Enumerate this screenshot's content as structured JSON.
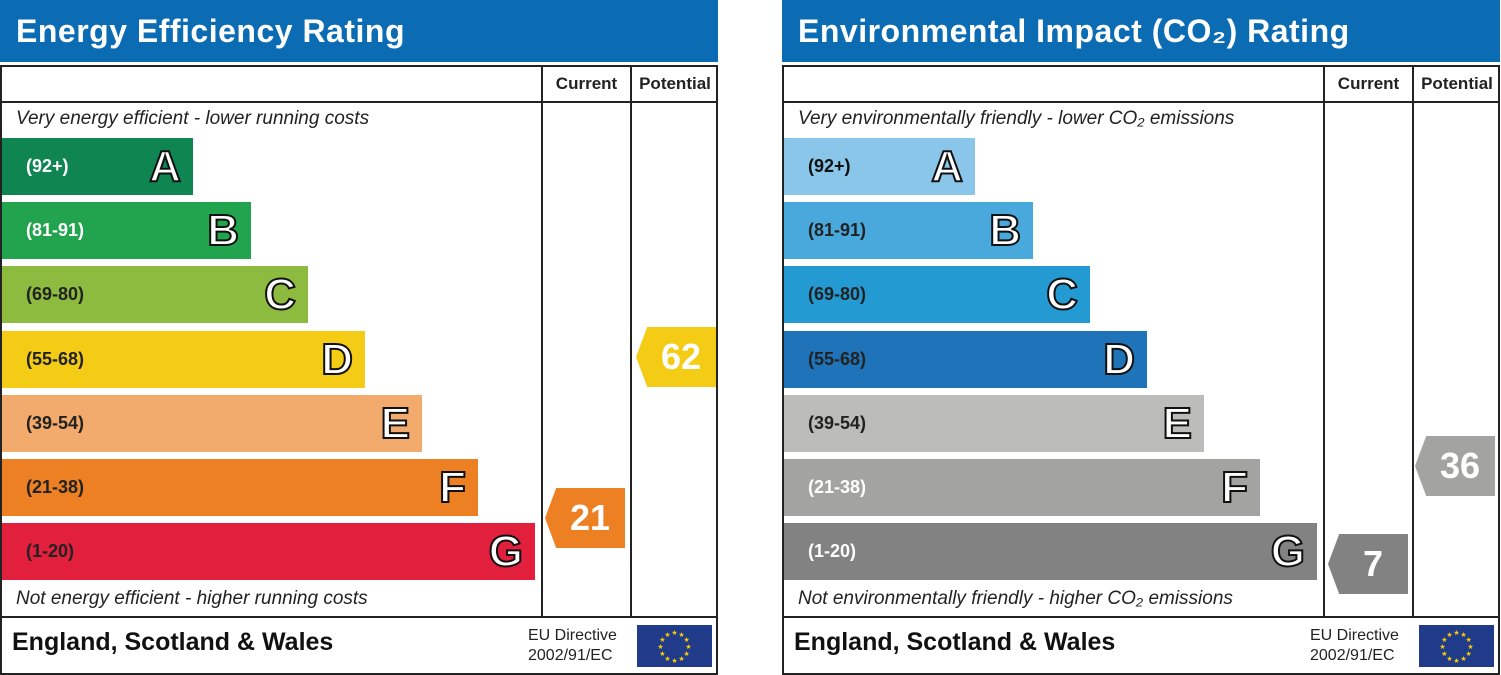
{
  "panels": [
    {
      "title": "Energy Efficiency Rating",
      "current_label": "Current",
      "potential_label": "Potential",
      "top_caption": "Very energy efficient - lower running costs",
      "bottom_caption": "Not energy efficient - higher running costs",
      "footer": "England, Scotland & Wales",
      "eu_line1": "EU Directive",
      "eu_line2": "2002/91/EC",
      "bands": [
        {
          "letter": "A",
          "range": "(92+)",
          "color": "#0f8552",
          "text": "#fff"
        },
        {
          "letter": "B",
          "range": "(81-91)",
          "color": "#22a34d",
          "text": "#fff"
        },
        {
          "letter": "C",
          "range": "(69-80)",
          "color": "#8cbb3f",
          "text": "#222"
        },
        {
          "letter": "D",
          "range": "(55-68)",
          "color": "#f5cc15",
          "text": "#222"
        },
        {
          "letter": "E",
          "range": "(39-54)",
          "color": "#f2aa6d",
          "text": "#222"
        },
        {
          "letter": "F",
          "range": "(21-38)",
          "color": "#ed8023",
          "text": "#222"
        },
        {
          "letter": "G",
          "range": "(1-20)",
          "color": "#e21f3d",
          "text": "#222"
        }
      ],
      "current": {
        "value": "21",
        "color": "#ed8023"
      },
      "potential": {
        "value": "62",
        "color": "#f5cc15"
      }
    },
    {
      "title": "Environmental Impact (CO₂) Rating",
      "current_label": "Current",
      "potential_label": "Potential",
      "top_caption": "Very environmentally friendly - lower CO₂ emissions",
      "bottom_caption": "Not environmentally friendly - higher CO₂ emissions",
      "footer": "England, Scotland & Wales",
      "eu_line1": "EU Directive",
      "eu_line2": "2002/91/EC",
      "bands": [
        {
          "letter": "A",
          "range": "(92+)",
          "color": "#8ac6ea",
          "text": "#111"
        },
        {
          "letter": "B",
          "range": "(81-91)",
          "color": "#4aa9dc",
          "text": "#222"
        },
        {
          "letter": "C",
          "range": "(69-80)",
          "color": "#249ad3",
          "text": "#222"
        },
        {
          "letter": "D",
          "range": "(55-68)",
          "color": "#1f74b9",
          "text": "#222"
        },
        {
          "letter": "E",
          "range": "(39-54)",
          "color": "#bcbcbb",
          "text": "#222"
        },
        {
          "letter": "F",
          "range": "(21-38)",
          "color": "#a3a3a2",
          "text": "#fff"
        },
        {
          "letter": "G",
          "range": "(1-20)",
          "color": "#828282",
          "text": "#fff"
        }
      ],
      "current": {
        "value": "7",
        "color": "#828282"
      },
      "potential": {
        "value": "36",
        "color": "#a3a3a2"
      }
    }
  ]
}
